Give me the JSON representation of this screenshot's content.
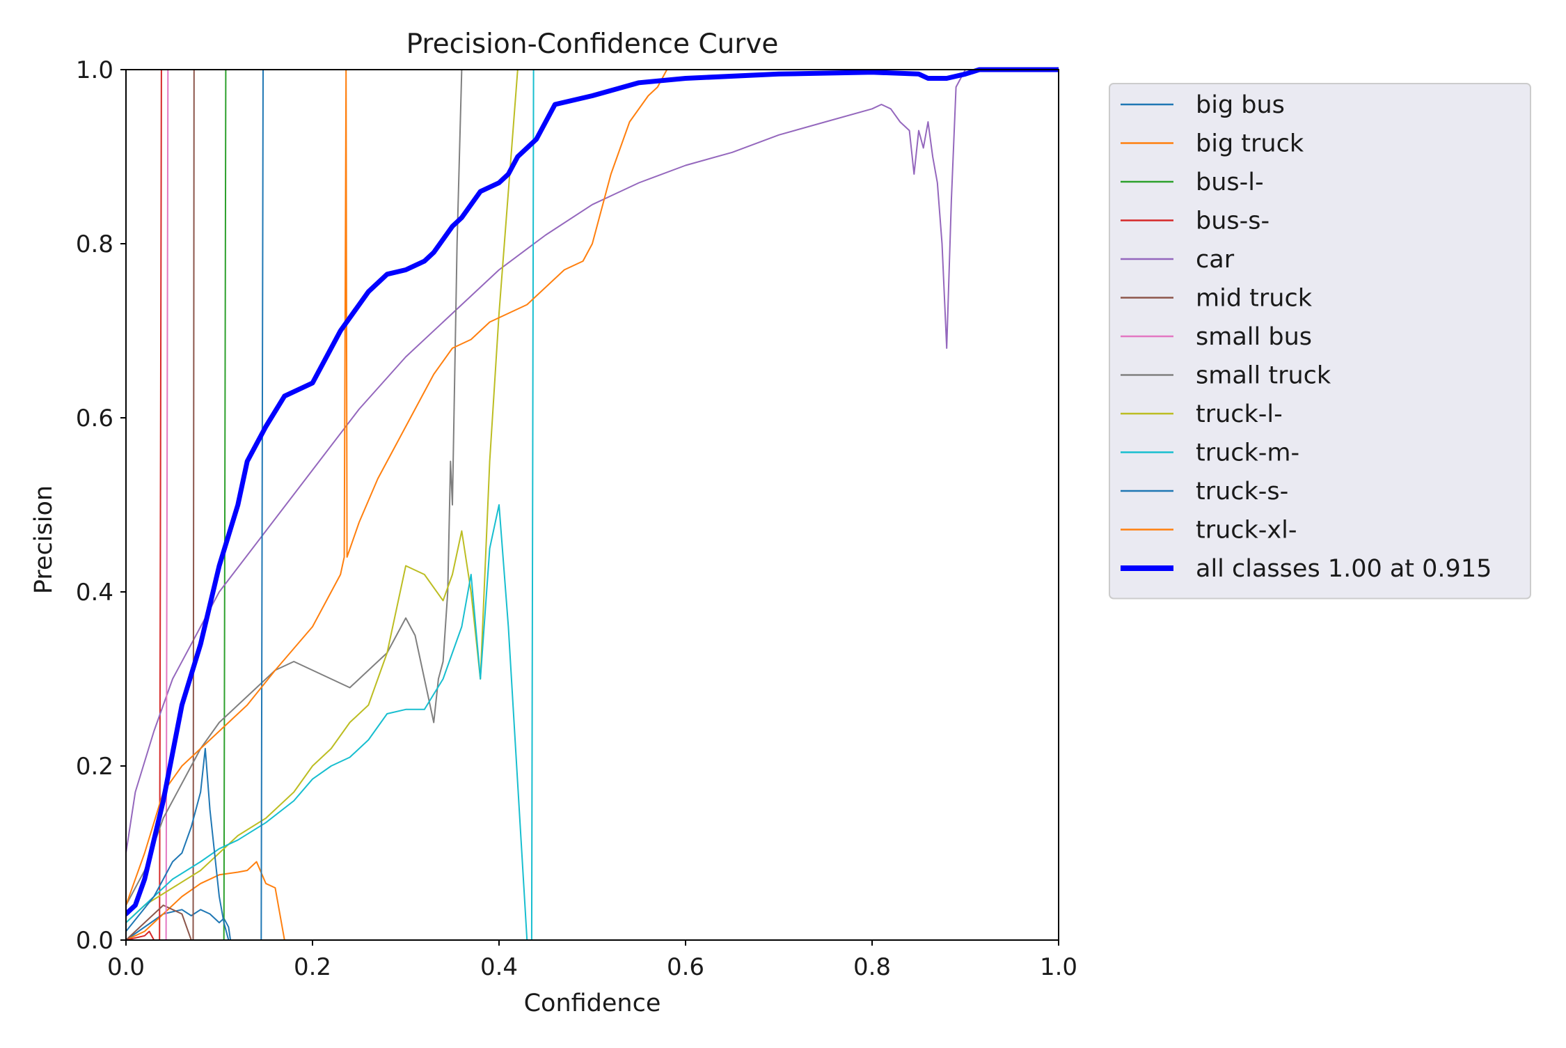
{
  "chart_data": {
    "type": "line",
    "title": "Precision-Confidence Curve",
    "xlabel": "Confidence",
    "ylabel": "Precision",
    "xlim": [
      0,
      1
    ],
    "ylim": [
      0,
      1
    ],
    "x_ticks": [
      "0.0",
      "0.2",
      "0.4",
      "0.6",
      "0.8",
      "1.0"
    ],
    "y_ticks": [
      "0.0",
      "0.2",
      "0.4",
      "0.6",
      "0.8",
      "1.0"
    ],
    "grid": false,
    "legend_position": "outside-right-top",
    "series": [
      {
        "name": "big bus",
        "color": "#1f77b4",
        "width": 2,
        "points": [
          [
            0,
            0.0
          ],
          [
            0.04,
            0.03
          ],
          [
            0.06,
            0.035
          ],
          [
            0.07,
            0.028
          ],
          [
            0.08,
            0.035
          ],
          [
            0.09,
            0.03
          ],
          [
            0.1,
            0.02
          ],
          [
            0.105,
            0.025
          ],
          [
            0.11,
            0.015
          ],
          [
            0.112,
            0.0
          ],
          [
            1.0,
            0.0
          ]
        ]
      },
      {
        "name": "big truck",
        "color": "#ff7f0e",
        "width": 2,
        "points": [
          [
            0,
            0.0
          ],
          [
            0.02,
            0.01
          ],
          [
            0.04,
            0.03
          ],
          [
            0.06,
            0.05
          ],
          [
            0.08,
            0.065
          ],
          [
            0.1,
            0.075
          ],
          [
            0.12,
            0.078
          ],
          [
            0.13,
            0.08
          ],
          [
            0.14,
            0.09
          ],
          [
            0.15,
            0.065
          ],
          [
            0.16,
            0.06
          ],
          [
            0.165,
            0.03
          ],
          [
            0.17,
            0.0
          ],
          [
            1.0,
            0.0
          ]
        ]
      },
      {
        "name": "bus-l-",
        "color": "#2ca02c",
        "width": 2,
        "points": [
          [
            0,
            0.0
          ],
          [
            0.105,
            0.0
          ],
          [
            0.107,
            1.0
          ],
          [
            1.0,
            1.0
          ]
        ]
      },
      {
        "name": "bus-s-",
        "color": "#d62728",
        "width": 2,
        "points": [
          [
            0,
            0.0
          ],
          [
            0.02,
            0.005
          ],
          [
            0.025,
            0.01
          ],
          [
            0.03,
            0.0
          ],
          [
            0.036,
            0.0
          ],
          [
            0.038,
            1.0
          ],
          [
            1.0,
            1.0
          ]
        ]
      },
      {
        "name": "car",
        "color": "#9467bd",
        "width": 2,
        "points": [
          [
            0,
            0.1
          ],
          [
            0.01,
            0.17
          ],
          [
            0.03,
            0.24
          ],
          [
            0.05,
            0.3
          ],
          [
            0.08,
            0.36
          ],
          [
            0.1,
            0.4
          ],
          [
            0.15,
            0.47
          ],
          [
            0.2,
            0.54
          ],
          [
            0.25,
            0.61
          ],
          [
            0.3,
            0.67
          ],
          [
            0.35,
            0.72
          ],
          [
            0.4,
            0.77
          ],
          [
            0.45,
            0.81
          ],
          [
            0.5,
            0.845
          ],
          [
            0.55,
            0.87
          ],
          [
            0.6,
            0.89
          ],
          [
            0.65,
            0.905
          ],
          [
            0.7,
            0.925
          ],
          [
            0.75,
            0.94
          ],
          [
            0.8,
            0.955
          ],
          [
            0.81,
            0.96
          ],
          [
            0.82,
            0.955
          ],
          [
            0.83,
            0.94
          ],
          [
            0.84,
            0.93
          ],
          [
            0.845,
            0.88
          ],
          [
            0.85,
            0.93
          ],
          [
            0.855,
            0.91
          ],
          [
            0.86,
            0.94
          ],
          [
            0.865,
            0.9
          ],
          [
            0.87,
            0.87
          ],
          [
            0.875,
            0.8
          ],
          [
            0.88,
            0.68
          ],
          [
            0.885,
            0.85
          ],
          [
            0.89,
            0.98
          ],
          [
            0.9,
            1.0
          ],
          [
            1.0,
            1.0
          ]
        ]
      },
      {
        "name": "mid truck",
        "color": "#8c564b",
        "width": 2,
        "points": [
          [
            0,
            0.0
          ],
          [
            0.04,
            0.04
          ],
          [
            0.06,
            0.03
          ],
          [
            0.07,
            0.0
          ],
          [
            0.072,
            0.0
          ],
          [
            0.073,
            1.0
          ],
          [
            1.0,
            1.0
          ]
        ]
      },
      {
        "name": "small bus",
        "color": "#e377c2",
        "width": 2,
        "points": [
          [
            0,
            0.0
          ],
          [
            0.043,
            0.0
          ],
          [
            0.045,
            1.0
          ],
          [
            1.0,
            1.0
          ]
        ]
      },
      {
        "name": "small truck",
        "color": "#7f7f7f",
        "width": 2,
        "points": [
          [
            0,
            0.04
          ],
          [
            0.02,
            0.08
          ],
          [
            0.04,
            0.14
          ],
          [
            0.06,
            0.18
          ],
          [
            0.08,
            0.22
          ],
          [
            0.1,
            0.25
          ],
          [
            0.12,
            0.27
          ],
          [
            0.14,
            0.29
          ],
          [
            0.16,
            0.31
          ],
          [
            0.18,
            0.32
          ],
          [
            0.2,
            0.31
          ],
          [
            0.22,
            0.3
          ],
          [
            0.24,
            0.29
          ],
          [
            0.26,
            0.31
          ],
          [
            0.28,
            0.33
          ],
          [
            0.29,
            0.35
          ],
          [
            0.3,
            0.37
          ],
          [
            0.31,
            0.35
          ],
          [
            0.32,
            0.3
          ],
          [
            0.33,
            0.25
          ],
          [
            0.335,
            0.3
          ],
          [
            0.34,
            0.32
          ],
          [
            0.345,
            0.4
          ],
          [
            0.348,
            0.55
          ],
          [
            0.35,
            0.5
          ],
          [
            0.355,
            0.8
          ],
          [
            0.36,
            1.0
          ],
          [
            1.0,
            1.0
          ]
        ]
      },
      {
        "name": "truck-l-",
        "color": "#bcbd22",
        "width": 2,
        "points": [
          [
            0,
            0.02
          ],
          [
            0.02,
            0.04
          ],
          [
            0.05,
            0.06
          ],
          [
            0.08,
            0.08
          ],
          [
            0.1,
            0.1
          ],
          [
            0.12,
            0.12
          ],
          [
            0.15,
            0.14
          ],
          [
            0.18,
            0.17
          ],
          [
            0.2,
            0.2
          ],
          [
            0.22,
            0.22
          ],
          [
            0.24,
            0.25
          ],
          [
            0.26,
            0.27
          ],
          [
            0.28,
            0.33
          ],
          [
            0.3,
            0.43
          ],
          [
            0.32,
            0.42
          ],
          [
            0.34,
            0.39
          ],
          [
            0.35,
            0.42
          ],
          [
            0.36,
            0.47
          ],
          [
            0.37,
            0.4
          ],
          [
            0.38,
            0.3
          ],
          [
            0.39,
            0.55
          ],
          [
            0.4,
            0.72
          ],
          [
            0.41,
            0.86
          ],
          [
            0.42,
            1.0
          ],
          [
            1.0,
            1.0
          ]
        ]
      },
      {
        "name": "truck-m-",
        "color": "#17becf",
        "width": 2,
        "points": [
          [
            0,
            0.02
          ],
          [
            0.02,
            0.04
          ],
          [
            0.05,
            0.07
          ],
          [
            0.08,
            0.09
          ],
          [
            0.1,
            0.105
          ],
          [
            0.12,
            0.115
          ],
          [
            0.15,
            0.135
          ],
          [
            0.18,
            0.16
          ],
          [
            0.2,
            0.185
          ],
          [
            0.22,
            0.2
          ],
          [
            0.24,
            0.21
          ],
          [
            0.26,
            0.23
          ],
          [
            0.28,
            0.26
          ],
          [
            0.3,
            0.265
          ],
          [
            0.32,
            0.265
          ],
          [
            0.34,
            0.3
          ],
          [
            0.36,
            0.36
          ],
          [
            0.37,
            0.42
          ],
          [
            0.38,
            0.3
          ],
          [
            0.39,
            0.45
          ],
          [
            0.4,
            0.5
          ],
          [
            0.41,
            0.36
          ],
          [
            0.42,
            0.18
          ],
          [
            0.43,
            0.0
          ],
          [
            0.435,
            0.0
          ],
          [
            0.437,
            1.0
          ],
          [
            1.0,
            1.0
          ]
        ]
      },
      {
        "name": "truck-s-",
        "color": "#1f77b4",
        "width": 2,
        "points": [
          [
            0,
            0.01
          ],
          [
            0.03,
            0.05
          ],
          [
            0.05,
            0.09
          ],
          [
            0.06,
            0.1
          ],
          [
            0.07,
            0.13
          ],
          [
            0.08,
            0.17
          ],
          [
            0.085,
            0.22
          ],
          [
            0.09,
            0.15
          ],
          [
            0.095,
            0.1
          ],
          [
            0.1,
            0.05
          ],
          [
            0.105,
            0.02
          ],
          [
            0.11,
            0.0
          ],
          [
            0.145,
            0.0
          ],
          [
            0.147,
            1.0
          ],
          [
            1.0,
            1.0
          ]
        ]
      },
      {
        "name": "truck-xl-",
        "color": "#ff7f0e",
        "width": 2,
        "points": [
          [
            0,
            0.04
          ],
          [
            0.02,
            0.1
          ],
          [
            0.04,
            0.17
          ],
          [
            0.06,
            0.2
          ],
          [
            0.08,
            0.22
          ],
          [
            0.1,
            0.24
          ],
          [
            0.13,
            0.27
          ],
          [
            0.16,
            0.31
          ],
          [
            0.2,
            0.36
          ],
          [
            0.23,
            0.42
          ],
          [
            0.234,
            0.44
          ],
          [
            0.236,
            1.0
          ],
          [
            0.237,
            0.44
          ],
          [
            0.25,
            0.48
          ],
          [
            0.27,
            0.53
          ],
          [
            0.29,
            0.57
          ],
          [
            0.31,
            0.61
          ],
          [
            0.33,
            0.65
          ],
          [
            0.35,
            0.68
          ],
          [
            0.37,
            0.69
          ],
          [
            0.39,
            0.71
          ],
          [
            0.41,
            0.72
          ],
          [
            0.43,
            0.73
          ],
          [
            0.45,
            0.75
          ],
          [
            0.47,
            0.77
          ],
          [
            0.49,
            0.78
          ],
          [
            0.5,
            0.8
          ],
          [
            0.52,
            0.88
          ],
          [
            0.54,
            0.94
          ],
          [
            0.56,
            0.97
          ],
          [
            0.57,
            0.98
          ],
          [
            0.58,
            1.0
          ],
          [
            1.0,
            1.0
          ]
        ]
      },
      {
        "name": "all classes 1.00 at 0.915",
        "color": "#0000ff",
        "width": 7,
        "points": [
          [
            0,
            0.03
          ],
          [
            0.01,
            0.04
          ],
          [
            0.02,
            0.07
          ],
          [
            0.04,
            0.16
          ],
          [
            0.06,
            0.27
          ],
          [
            0.08,
            0.34
          ],
          [
            0.1,
            0.43
          ],
          [
            0.12,
            0.5
          ],
          [
            0.13,
            0.55
          ],
          [
            0.15,
            0.59
          ],
          [
            0.17,
            0.625
          ],
          [
            0.2,
            0.64
          ],
          [
            0.23,
            0.7
          ],
          [
            0.26,
            0.745
          ],
          [
            0.28,
            0.765
          ],
          [
            0.3,
            0.77
          ],
          [
            0.32,
            0.78
          ],
          [
            0.33,
            0.79
          ],
          [
            0.35,
            0.82
          ],
          [
            0.36,
            0.83
          ],
          [
            0.38,
            0.86
          ],
          [
            0.4,
            0.87
          ],
          [
            0.41,
            0.88
          ],
          [
            0.42,
            0.9
          ],
          [
            0.44,
            0.92
          ],
          [
            0.46,
            0.96
          ],
          [
            0.5,
            0.97
          ],
          [
            0.55,
            0.985
          ],
          [
            0.6,
            0.99
          ],
          [
            0.7,
            0.995
          ],
          [
            0.8,
            0.997
          ],
          [
            0.85,
            0.995
          ],
          [
            0.86,
            0.99
          ],
          [
            0.88,
            0.99
          ],
          [
            0.9,
            0.995
          ],
          [
            0.915,
            1.0
          ],
          [
            1.0,
            1.0
          ]
        ]
      }
    ]
  }
}
